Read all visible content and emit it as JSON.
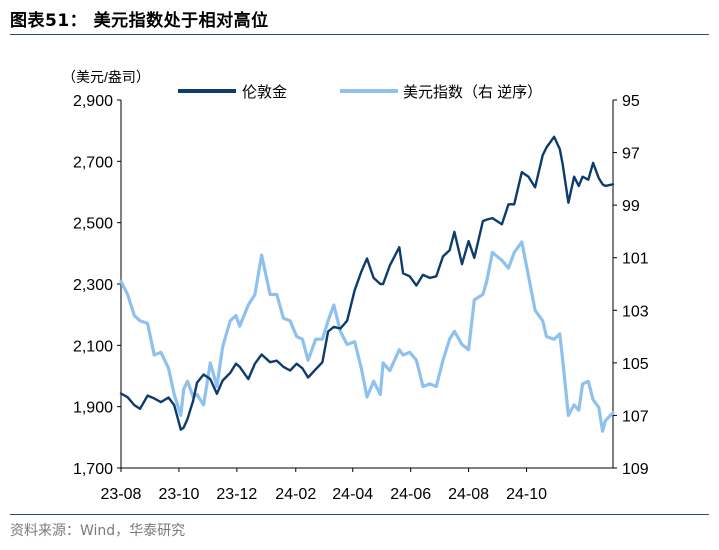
{
  "figure": {
    "title": "图表51：  美元指数处于相对高位",
    "source": "资料来源：Wind，华泰研究"
  },
  "chart_data": {
    "type": "line",
    "left_axis_unit": "（美元/盎司）",
    "y_left": {
      "min": 1700,
      "max": 2900,
      "ticks": [
        "1,700",
        "1,900",
        "2,100",
        "2,300",
        "2,500",
        "2,700",
        "2,900"
      ]
    },
    "y_right": {
      "min": 95,
      "max": 109,
      "reversed": true,
      "ticks": [
        "95",
        "97",
        "99",
        "101",
        "103",
        "105",
        "107",
        "109"
      ]
    },
    "x_ticks": [
      "23-08",
      "23-10",
      "23-12",
      "24-02",
      "24-04",
      "24-06",
      "24-08",
      "24-10"
    ],
    "grid": false,
    "legend_position": "top",
    "colors": {
      "gold": "#0d3b6e",
      "dxy": "#8fc1ee"
    },
    "series": [
      {
        "name": "伦敦金",
        "axis": "left",
        "points": [
          [
            "23-08-01",
            1943
          ],
          [
            "23-08-08",
            1931
          ],
          [
            "23-08-15",
            1905
          ],
          [
            "23-08-21",
            1893
          ],
          [
            "23-08-29",
            1936
          ],
          [
            "23-09-05",
            1927
          ],
          [
            "23-09-12",
            1915
          ],
          [
            "23-09-20",
            1930
          ],
          [
            "23-09-26",
            1905
          ],
          [
            "23-10-03",
            1825
          ],
          [
            "23-10-06",
            1832
          ],
          [
            "23-10-10",
            1860
          ],
          [
            "23-10-16",
            1920
          ],
          [
            "23-10-20",
            1978
          ],
          [
            "23-10-27",
            2005
          ],
          [
            "23-11-03",
            1990
          ],
          [
            "23-11-10",
            1942
          ],
          [
            "23-11-16",
            1985
          ],
          [
            "23-11-24",
            2010
          ],
          [
            "23-11-30",
            2040
          ],
          [
            "23-12-04",
            2030
          ],
          [
            "23-12-13",
            1990
          ],
          [
            "23-12-20",
            2040
          ],
          [
            "23-12-27",
            2070
          ],
          [
            "24-01-05",
            2045
          ],
          [
            "24-01-12",
            2050
          ],
          [
            "24-01-19",
            2030
          ],
          [
            "24-01-26",
            2018
          ],
          [
            "24-02-02",
            2040
          ],
          [
            "24-02-08",
            2025
          ],
          [
            "24-02-14",
            1995
          ],
          [
            "24-02-22",
            2022
          ],
          [
            "24-02-29",
            2045
          ],
          [
            "24-03-06",
            2145
          ],
          [
            "24-03-12",
            2160
          ],
          [
            "24-03-19",
            2155
          ],
          [
            "24-03-26",
            2180
          ],
          [
            "24-04-03",
            2280
          ],
          [
            "24-04-10",
            2340
          ],
          [
            "24-04-16",
            2383
          ],
          [
            "24-04-23",
            2320
          ],
          [
            "24-04-30",
            2300
          ],
          [
            "24-05-03",
            2300
          ],
          [
            "24-05-10",
            2360
          ],
          [
            "24-05-20",
            2420
          ],
          [
            "24-05-24",
            2335
          ],
          [
            "24-05-31",
            2325
          ],
          [
            "24-06-07",
            2295
          ],
          [
            "24-06-14",
            2330
          ],
          [
            "24-06-21",
            2320
          ],
          [
            "24-06-28",
            2325
          ],
          [
            "24-07-05",
            2390
          ],
          [
            "24-07-12",
            2410
          ],
          [
            "24-07-17",
            2470
          ],
          [
            "24-07-25",
            2365
          ],
          [
            "24-08-01",
            2440
          ],
          [
            "24-08-07",
            2385
          ],
          [
            "24-08-16",
            2505
          ],
          [
            "24-08-20",
            2510
          ],
          [
            "24-08-26",
            2515
          ],
          [
            "24-09-05",
            2495
          ],
          [
            "24-09-12",
            2560
          ],
          [
            "24-09-18",
            2560
          ],
          [
            "24-09-26",
            2665
          ],
          [
            "24-10-03",
            2650
          ],
          [
            "24-10-10",
            2615
          ],
          [
            "24-10-18",
            2720
          ],
          [
            "24-10-22",
            2745
          ],
          [
            "24-10-30",
            2780
          ],
          [
            "24-11-05",
            2740
          ],
          [
            "24-11-08",
            2690
          ],
          [
            "24-11-14",
            2565
          ],
          [
            "24-11-20",
            2650
          ],
          [
            "24-11-25",
            2620
          ],
          [
            "24-11-29",
            2650
          ],
          [
            "24-12-05",
            2640
          ],
          [
            "24-12-10",
            2695
          ],
          [
            "24-12-16",
            2645
          ],
          [
            "24-12-20",
            2625
          ],
          [
            "24-12-23",
            2620
          ],
          [
            "24-12-31",
            2625
          ]
        ]
      },
      {
        "name": "美元指数（右  逆序）",
        "axis": "right",
        "points": [
          [
            "23-08-01",
            101.9
          ],
          [
            "23-08-08",
            102.4
          ],
          [
            "23-08-15",
            103.2
          ],
          [
            "23-08-21",
            103.4
          ],
          [
            "23-08-29",
            103.5
          ],
          [
            "23-09-05",
            104.7
          ],
          [
            "23-09-12",
            104.6
          ],
          [
            "23-09-20",
            105.2
          ],
          [
            "23-09-26",
            106.2
          ],
          [
            "23-10-03",
            107.0
          ],
          [
            "23-10-06",
            106.0
          ],
          [
            "23-10-10",
            105.7
          ],
          [
            "23-10-16",
            106.3
          ],
          [
            "23-10-20",
            106.2
          ],
          [
            "23-10-27",
            106.6
          ],
          [
            "23-11-03",
            105.0
          ],
          [
            "23-11-10",
            105.9
          ],
          [
            "23-11-16",
            104.4
          ],
          [
            "23-11-24",
            103.4
          ],
          [
            "23-11-30",
            103.2
          ],
          [
            "23-12-04",
            103.6
          ],
          [
            "23-12-13",
            102.8
          ],
          [
            "23-12-20",
            102.4
          ],
          [
            "23-12-27",
            100.9
          ],
          [
            "24-01-05",
            102.4
          ],
          [
            "24-01-12",
            102.4
          ],
          [
            "24-01-19",
            103.3
          ],
          [
            "24-01-26",
            103.4
          ],
          [
            "24-02-02",
            104.0
          ],
          [
            "24-02-08",
            104.1
          ],
          [
            "24-02-14",
            104.9
          ],
          [
            "24-02-22",
            104.1
          ],
          [
            "24-02-29",
            104.1
          ],
          [
            "24-03-06",
            103.4
          ],
          [
            "24-03-12",
            102.8
          ],
          [
            "24-03-19",
            103.8
          ],
          [
            "24-03-26",
            104.3
          ],
          [
            "24-04-03",
            104.2
          ],
          [
            "24-04-10",
            105.2
          ],
          [
            "24-04-16",
            106.3
          ],
          [
            "24-04-23",
            105.7
          ],
          [
            "24-04-30",
            106.2
          ],
          [
            "24-05-03",
            105.0
          ],
          [
            "24-05-10",
            105.3
          ],
          [
            "24-05-20",
            104.5
          ],
          [
            "24-05-24",
            104.7
          ],
          [
            "24-05-31",
            104.6
          ],
          [
            "24-06-07",
            104.9
          ],
          [
            "24-06-14",
            105.9
          ],
          [
            "24-06-21",
            105.8
          ],
          [
            "24-06-28",
            105.9
          ],
          [
            "24-07-05",
            104.9
          ],
          [
            "24-07-12",
            104.1
          ],
          [
            "24-07-17",
            103.8
          ],
          [
            "24-07-25",
            104.3
          ],
          [
            "24-08-01",
            104.5
          ],
          [
            "24-08-07",
            102.6
          ],
          [
            "24-08-16",
            102.4
          ],
          [
            "24-08-20",
            101.9
          ],
          [
            "24-08-26",
            100.8
          ],
          [
            "24-09-05",
            101.1
          ],
          [
            "24-09-12",
            101.4
          ],
          [
            "24-09-18",
            100.8
          ],
          [
            "24-09-26",
            100.4
          ],
          [
            "24-10-03",
            101.7
          ],
          [
            "24-10-10",
            103.0
          ],
          [
            "24-10-18",
            103.4
          ],
          [
            "24-10-22",
            104.0
          ],
          [
            "24-10-30",
            104.1
          ],
          [
            "24-11-05",
            103.9
          ],
          [
            "24-11-08",
            104.9
          ],
          [
            "24-11-14",
            107.0
          ],
          [
            "24-11-20",
            106.6
          ],
          [
            "24-11-25",
            106.8
          ],
          [
            "24-11-29",
            105.8
          ],
          [
            "24-12-05",
            105.7
          ],
          [
            "24-12-10",
            106.4
          ],
          [
            "24-12-16",
            106.7
          ],
          [
            "24-12-20",
            107.6
          ],
          [
            "24-12-23",
            107.2
          ],
          [
            "24-12-31",
            106.9
          ]
        ]
      }
    ]
  }
}
